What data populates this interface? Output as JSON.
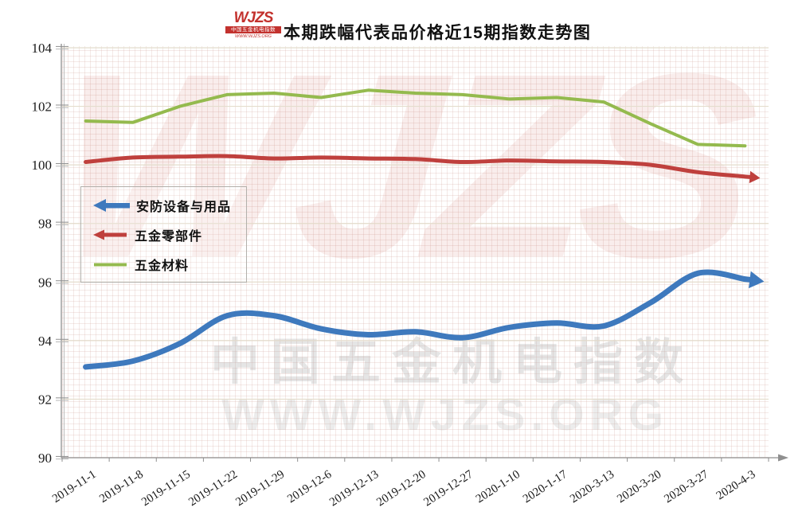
{
  "header": {
    "title": "本期跌幅代表品价格近15期指数走势图",
    "logo": {
      "mark": "WJZS",
      "bar_text": "中国五金机电指数",
      "url": "WWW.WJZS.ORG"
    }
  },
  "watermarks": {
    "brand": "WJZS",
    "cn": "中国五金机电指数",
    "url": "WWW.WJZS.ORG"
  },
  "chart_data": {
    "type": "line",
    "title": "本期跌幅代表品价格近15期指数走势图",
    "categories": [
      "2019-11-1",
      "2019-11-8",
      "2019-11-15",
      "2019-11-22",
      "2019-11-29",
      "2019-12-6",
      "2019-12-13",
      "2019-12-20",
      "2019-12-27",
      "2020-1-10",
      "2020-1-17",
      "2020-3-13",
      "2020-3-20",
      "2020-3-27",
      "2020-4-3"
    ],
    "series": [
      {
        "name": "安防设备与用品",
        "color": "#3e79bd",
        "width": 7,
        "smooth": true,
        "arrow": true,
        "values": [
          93.1,
          93.3,
          93.9,
          94.85,
          94.85,
          94.4,
          94.2,
          94.3,
          94.1,
          94.45,
          94.6,
          94.5,
          95.3,
          96.3,
          96.1
        ]
      },
      {
        "name": "五金零部件",
        "color": "#bf403d",
        "width": 5,
        "smooth": true,
        "arrow": true,
        "values": [
          100.1,
          100.25,
          100.28,
          100.3,
          100.22,
          100.25,
          100.22,
          100.2,
          100.1,
          100.15,
          100.12,
          100.1,
          100.0,
          99.75,
          99.6
        ]
      },
      {
        "name": "五金材料",
        "color": "#94ba4e",
        "width": 4,
        "smooth": false,
        "arrow": false,
        "values": [
          101.5,
          101.45,
          102.0,
          102.4,
          102.45,
          102.3,
          102.55,
          102.45,
          102.4,
          102.25,
          102.3,
          102.15,
          101.4,
          100.7,
          100.65
        ]
      }
    ],
    "xlabel": "",
    "ylabel": "",
    "ylim": [
      90,
      104
    ],
    "yticks": [
      90,
      92,
      94,
      96,
      98,
      100,
      102,
      104
    ],
    "x_label_rotation": -33,
    "grid": true,
    "legend_position": "middle-left"
  }
}
